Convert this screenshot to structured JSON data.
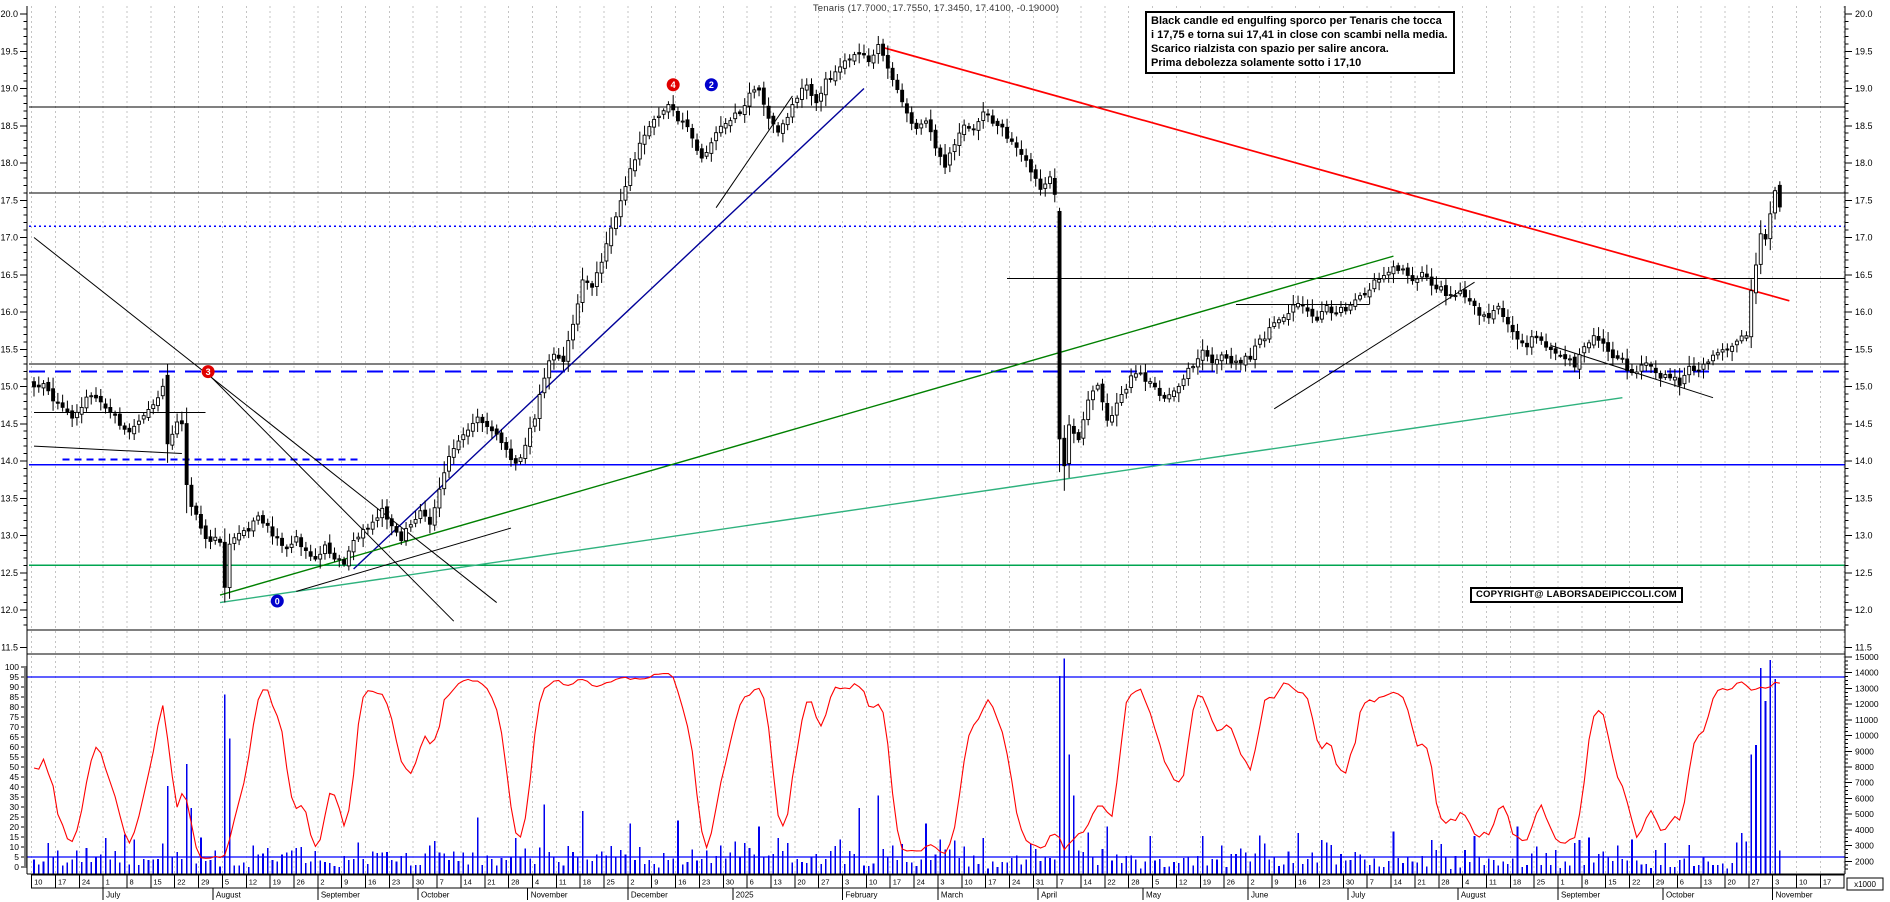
{
  "title": "Tenaris (17.7000, 17.7550, 17.3450, 17.4100, -0.19000)",
  "annotation": {
    "line1": "Black candle ed engulfing sporco per Tenaris che tocca",
    "line2": "i 17,75 e torna sui 17,41 in close con scambi nella media.",
    "line3": "Scarico rialzista con spazio per salire ancora.",
    "line4": "Prima debolezza solamente sotto i 17,10"
  },
  "copyright": "COPYRIGHT@ LABORSADEIPICCOLI.COM",
  "chart_data": {
    "type": "candlestick",
    "instrument": "Tenaris",
    "last_quote": {
      "open": 17.7,
      "high": 17.755,
      "low": 17.345,
      "close": 17.41,
      "change": -0.19
    },
    "price_axis": {
      "labels_min": 11.5,
      "labels_max": 20.0,
      "label_step": 0.5,
      "minor_step": 0.1
    },
    "oscillator_axis": {
      "min": 0,
      "max": 100,
      "label_step": 5,
      "minor_step": 1,
      "overbought_line": 95,
      "oversold_line": 5
    },
    "volume_axis": {
      "labels_min": 1000,
      "labels_max": 15000,
      "label_step": 1000,
      "minor_step": 250,
      "unit_label": "x1000"
    },
    "days_total": 367,
    "seed": 20251106,
    "weeks": [
      "10",
      "17",
      "24",
      "1",
      "8",
      "15",
      "22",
      "29",
      "5",
      "12",
      "19",
      "26",
      "2",
      "9",
      "16",
      "23",
      "30",
      "7",
      "14",
      "21",
      "28",
      "4",
      "11",
      "18",
      "25",
      "2",
      "9",
      "16",
      "23",
      "30",
      "6",
      "13",
      "20",
      "27",
      "3",
      "10",
      "17",
      "24",
      "3",
      "10",
      "17",
      "24",
      "31",
      "7",
      "14",
      "22",
      "28",
      "5",
      "12",
      "19",
      "26",
      "2",
      "9",
      "16",
      "23",
      "30",
      "7",
      "14",
      "21",
      "28",
      "4",
      "11",
      "18",
      "25",
      "1",
      "8",
      "15",
      "22",
      "29",
      "6",
      "13",
      "20",
      "27",
      "3",
      "10",
      "17"
    ],
    "months": [
      {
        "label": "July",
        "day": 15
      },
      {
        "label": "August",
        "day": 38
      },
      {
        "label": "September",
        "day": 60
      },
      {
        "label": "October",
        "day": 81
      },
      {
        "label": "November",
        "day": 104
      },
      {
        "label": "December",
        "day": 125
      },
      {
        "label": "2025",
        "day": 147
      },
      {
        "label": "February",
        "day": 170
      },
      {
        "label": "March",
        "day": 190
      },
      {
        "label": "April",
        "day": 211
      },
      {
        "label": "May",
        "day": 233
      },
      {
        "label": "June",
        "day": 255
      },
      {
        "label": "July",
        "day": 276
      },
      {
        "label": "August",
        "day": 299
      },
      {
        "label": "September",
        "day": 320
      },
      {
        "label": "October",
        "day": 342
      },
      {
        "label": "November",
        "day": 365
      }
    ],
    "price_waypoints": [
      [
        0,
        14.95
      ],
      [
        2,
        15.0
      ],
      [
        4,
        14.85
      ],
      [
        6,
        14.7
      ],
      [
        8,
        14.6
      ],
      [
        10,
        14.75
      ],
      [
        12,
        14.9
      ],
      [
        14,
        14.8
      ],
      [
        16,
        14.65
      ],
      [
        18,
        14.5
      ],
      [
        20,
        14.4
      ],
      [
        22,
        14.55
      ],
      [
        24,
        14.7
      ],
      [
        26,
        14.85
      ],
      [
        27,
        15.0
      ],
      [
        28,
        14.2
      ],
      [
        29,
        14.4
      ],
      [
        30,
        14.55
      ],
      [
        31,
        14.5
      ],
      [
        32,
        13.7
      ],
      [
        33,
        13.4
      ],
      [
        34,
        13.25
      ],
      [
        35,
        13.1
      ],
      [
        36,
        13.0
      ],
      [
        37,
        12.9
      ],
      [
        38,
        13.0
      ],
      [
        39,
        12.9
      ],
      [
        40,
        12.3
      ],
      [
        41,
        12.85
      ],
      [
        43,
        13.0
      ],
      [
        45,
        13.1
      ],
      [
        47,
        13.3
      ],
      [
        49,
        13.1
      ],
      [
        51,
        12.95
      ],
      [
        53,
        12.8
      ],
      [
        55,
        12.95
      ],
      [
        57,
        12.8
      ],
      [
        59,
        12.7
      ],
      [
        61,
        12.85
      ],
      [
        63,
        12.7
      ],
      [
        65,
        12.6
      ],
      [
        67,
        12.9
      ],
      [
        69,
        13.05
      ],
      [
        71,
        13.2
      ],
      [
        73,
        13.35
      ],
      [
        75,
        13.1
      ],
      [
        77,
        12.95
      ],
      [
        79,
        13.15
      ],
      [
        81,
        13.3
      ],
      [
        83,
        13.15
      ],
      [
        85,
        13.6
      ],
      [
        87,
        14.05
      ],
      [
        89,
        14.3
      ],
      [
        91,
        14.4
      ],
      [
        93,
        14.55
      ],
      [
        95,
        14.5
      ],
      [
        97,
        14.35
      ],
      [
        99,
        14.15
      ],
      [
        101,
        13.95
      ],
      [
        103,
        14.2
      ],
      [
        105,
        14.6
      ],
      [
        107,
        15.15
      ],
      [
        109,
        15.45
      ],
      [
        111,
        15.3
      ],
      [
        113,
        15.85
      ],
      [
        115,
        16.45
      ],
      [
        117,
        16.35
      ],
      [
        119,
        16.7
      ],
      [
        121,
        17.1
      ],
      [
        123,
        17.45
      ],
      [
        125,
        17.9
      ],
      [
        127,
        18.25
      ],
      [
        129,
        18.5
      ],
      [
        131,
        18.65
      ],
      [
        133,
        18.8
      ],
      [
        135,
        18.6
      ],
      [
        137,
        18.45
      ],
      [
        140,
        18.05
      ],
      [
        142,
        18.3
      ],
      [
        145,
        18.55
      ],
      [
        148,
        18.7
      ],
      [
        150,
        18.9
      ],
      [
        152,
        19.0
      ],
      [
        154,
        18.6
      ],
      [
        156,
        18.4
      ],
      [
        158,
        18.65
      ],
      [
        160,
        18.9
      ],
      [
        162,
        19.05
      ],
      [
        164,
        18.85
      ],
      [
        166,
        19.1
      ],
      [
        168,
        19.2
      ],
      [
        170,
        19.35
      ],
      [
        173,
        19.45
      ],
      [
        175,
        19.4
      ],
      [
        177,
        19.55
      ],
      [
        179,
        19.3
      ],
      [
        181,
        19.0
      ],
      [
        183,
        18.7
      ],
      [
        185,
        18.45
      ],
      [
        187,
        18.6
      ],
      [
        189,
        18.2
      ],
      [
        191,
        17.95
      ],
      [
        193,
        18.25
      ],
      [
        195,
        18.5
      ],
      [
        197,
        18.45
      ],
      [
        199,
        18.7
      ],
      [
        201,
        18.55
      ],
      [
        203,
        18.5
      ],
      [
        205,
        18.25
      ],
      [
        207,
        18.1
      ],
      [
        209,
        17.9
      ],
      [
        211,
        17.65
      ],
      [
        213,
        17.8
      ],
      [
        214,
        17.55
      ],
      [
        215,
        14.3
      ],
      [
        216,
        13.95
      ],
      [
        217,
        14.5
      ],
      [
        219,
        14.3
      ],
      [
        221,
        14.85
      ],
      [
        223,
        15.05
      ],
      [
        225,
        14.55
      ],
      [
        227,
        14.75
      ],
      [
        229,
        15.0
      ],
      [
        231,
        15.2
      ],
      [
        233,
        15.1
      ],
      [
        235,
        15.0
      ],
      [
        237,
        14.8
      ],
      [
        239,
        14.95
      ],
      [
        241,
        15.1
      ],
      [
        243,
        15.3
      ],
      [
        245,
        15.45
      ],
      [
        247,
        15.3
      ],
      [
        249,
        15.4
      ],
      [
        251,
        15.3
      ],
      [
        253,
        15.35
      ],
      [
        255,
        15.4
      ],
      [
        257,
        15.6
      ],
      [
        259,
        15.75
      ],
      [
        261,
        15.9
      ],
      [
        263,
        16.0
      ],
      [
        265,
        16.15
      ],
      [
        267,
        16.0
      ],
      [
        269,
        15.9
      ],
      [
        271,
        16.05
      ],
      [
        273,
        16.0
      ],
      [
        275,
        16.05
      ],
      [
        277,
        16.15
      ],
      [
        279,
        16.25
      ],
      [
        281,
        16.4
      ],
      [
        283,
        16.5
      ],
      [
        285,
        16.6
      ],
      [
        287,
        16.55
      ],
      [
        289,
        16.4
      ],
      [
        291,
        16.5
      ],
      [
        293,
        16.35
      ],
      [
        295,
        16.3
      ],
      [
        297,
        16.2
      ],
      [
        299,
        16.3
      ],
      [
        301,
        16.15
      ],
      [
        303,
        16.0
      ],
      [
        305,
        15.9
      ],
      [
        307,
        16.05
      ],
      [
        309,
        15.85
      ],
      [
        311,
        15.6
      ],
      [
        313,
        15.55
      ],
      [
        315,
        15.7
      ],
      [
        317,
        15.5
      ],
      [
        319,
        15.45
      ],
      [
        321,
        15.4
      ],
      [
        323,
        15.3
      ],
      [
        325,
        15.5
      ],
      [
        327,
        15.65
      ],
      [
        329,
        15.55
      ],
      [
        331,
        15.4
      ],
      [
        333,
        15.35
      ],
      [
        335,
        15.15
      ],
      [
        337,
        15.3
      ],
      [
        339,
        15.25
      ],
      [
        341,
        15.1
      ],
      [
        343,
        15.15
      ],
      [
        345,
        15.05
      ],
      [
        347,
        15.25
      ],
      [
        349,
        15.2
      ],
      [
        351,
        15.35
      ],
      [
        353,
        15.45
      ],
      [
        355,
        15.5
      ],
      [
        357,
        15.6
      ],
      [
        359,
        15.7
      ],
      [
        360,
        16.3
      ],
      [
        361,
        16.6
      ],
      [
        362,
        17.05
      ],
      [
        363,
        17.0
      ],
      [
        364,
        17.3
      ],
      [
        365,
        17.6
      ],
      [
        366,
        17.41
      ]
    ],
    "candle_overrides": {
      "28": {
        "o": 15.15,
        "h": 15.3
      },
      "32": {
        "l": 13.3
      },
      "40": {
        "l": 12.1
      },
      "41": {
        "l": 12.15
      },
      "215": {
        "o": 17.35,
        "h": 17.4,
        "l": 13.85
      },
      "216": {
        "l": 13.6
      },
      "345": {
        "l": 14.88
      },
      "365": {
        "h": 17.68
      },
      "366": {
        "o": 17.7,
        "h": 17.755,
        "l": 17.345,
        "c": 17.41
      }
    },
    "volume_spikes": {
      "28": 6800,
      "32": 8200,
      "33": 5400,
      "40": 12600,
      "41": 9800,
      "93": 4800,
      "107": 5600,
      "115": 5200,
      "125": 4400,
      "135": 4600,
      "152": 4200,
      "173": 5400,
      "177": 6200,
      "187": 4400,
      "215": 13800,
      "216": 14900,
      "217": 8800,
      "218": 6200,
      "225": 4200,
      "245": 3600,
      "265": 3800,
      "285": 3900,
      "302": 3600,
      "311": 4200,
      "335": 3400,
      "360": 8800,
      "361": 9400,
      "362": 14300,
      "363": 12200,
      "364": 14800,
      "365": 13600,
      "366": 2700
    },
    "levels": [
      {
        "price": 18.75,
        "from": -1,
        "to": 380,
        "color": "#000000",
        "style": "solid",
        "width": 1
      },
      {
        "price": 17.6,
        "from": -1,
        "to": 380,
        "color": "#000000",
        "style": "solid",
        "width": 1
      },
      {
        "price": 17.15,
        "from": -1,
        "to": 380,
        "color": "#0000ff",
        "style": "dotted",
        "width": 1.2
      },
      {
        "price": 16.45,
        "from": 204,
        "to": 380,
        "color": "#000000",
        "style": "solid",
        "width": 1
      },
      {
        "price": 16.1,
        "from": 252,
        "to": 280,
        "color": "#000000",
        "style": "solid",
        "width": 1
      },
      {
        "price": 15.3,
        "from": -1,
        "to": 380,
        "color": "#000000",
        "style": "solid",
        "width": 1
      },
      {
        "price": 15.2,
        "from": -1,
        "to": 380,
        "color": "#0000ff",
        "style": "longdash",
        "width": 2
      },
      {
        "price": 14.65,
        "from": 0,
        "to": 36,
        "color": "#000000",
        "style": "solid",
        "width": 1
      },
      {
        "price": 14.02,
        "from": 6,
        "to": 68,
        "color": "#0000ff",
        "style": "dash",
        "width": 2
      },
      {
        "price": 13.95,
        "from": -1,
        "to": 380,
        "color": "#0000ff",
        "style": "solid",
        "width": 1.3
      },
      {
        "price": 12.6,
        "from": -1,
        "to": 380,
        "color": "#00a550",
        "style": "solid",
        "width": 1.3
      }
    ],
    "trendlines": [
      {
        "d1": 178,
        "p1": 19.55,
        "d2": 368,
        "p2": 16.15,
        "color": "#ff0000",
        "width": 1.7
      },
      {
        "d1": 67,
        "p1": 12.55,
        "d2": 174,
        "p2": 19.0,
        "color": "#000099",
        "width": 1.4
      },
      {
        "d1": 39,
        "p1": 12.2,
        "d2": 285,
        "p2": 16.75,
        "color": "#008000",
        "width": 1.4
      },
      {
        "d1": 39,
        "p1": 12.1,
        "d2": 333,
        "p2": 14.85,
        "color": "#2fb27e",
        "width": 1.4
      },
      {
        "d1": 0,
        "p1": 17.0,
        "d2": 97,
        "p2": 12.1,
        "color": "#000000",
        "width": 1
      },
      {
        "d1": 36,
        "p1": 15.2,
        "d2": 88,
        "p2": 11.85,
        "color": "#000000",
        "width": 1
      },
      {
        "d1": 55,
        "p1": 12.25,
        "d2": 100,
        "p2": 13.1,
        "color": "#000000",
        "width": 1
      },
      {
        "d1": 143,
        "p1": 17.4,
        "d2": 159,
        "p2": 18.9,
        "color": "#000000",
        "width": 1
      },
      {
        "d1": 260,
        "p1": 14.7,
        "d2": 302,
        "p2": 16.4,
        "color": "#000000",
        "width": 1
      },
      {
        "d1": 318,
        "p1": 15.55,
        "d2": 352,
        "p2": 14.85,
        "color": "#000000",
        "width": 1
      },
      {
        "d1": 0,
        "p1": 14.2,
        "d2": 31,
        "p2": 14.1,
        "color": "#000000",
        "width": 1
      }
    ],
    "wave_labels": [
      {
        "d": 36.5,
        "p": 15.2,
        "text": "3",
        "color": "#e00000"
      },
      {
        "d": 51,
        "p": 12.12,
        "text": "0",
        "color": "#0000cc"
      },
      {
        "d": 134,
        "p": 19.05,
        "text": "4",
        "color": "#e00000"
      },
      {
        "d": 142,
        "p": 19.05,
        "text": "2",
        "color": "#0000cc"
      }
    ],
    "colors": {
      "up_candle": "#ffffff",
      "down_candle": "#000000",
      "candle_outline": "#000000",
      "volume_bar": "#0000ee",
      "oscillator_line": "#ff0000",
      "oscillator_band": "#0000ff",
      "grid": "#c4c4c4",
      "axis_text": "#000000",
      "border": "#000000"
    }
  }
}
